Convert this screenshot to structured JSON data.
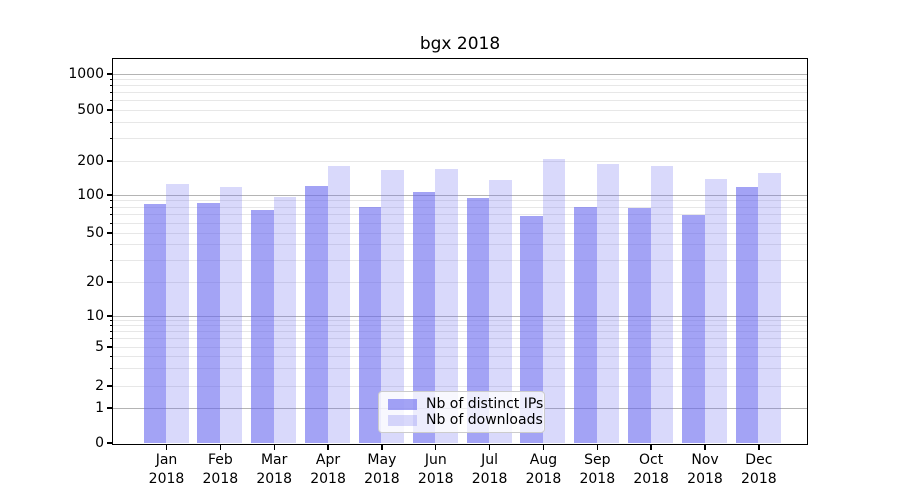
{
  "title": "bgx 2018",
  "chart_data": {
    "type": "bar",
    "title": "bgx 2018",
    "categories": [
      "Jan 2018",
      "Feb 2018",
      "Mar 2018",
      "Apr 2018",
      "May 2018",
      "Jun 2018",
      "Jul 2018",
      "Aug 2018",
      "Sep 2018",
      "Oct 2018",
      "Nov 2018",
      "Dec 2018"
    ],
    "series": [
      {
        "name": "Nb of distinct IPs",
        "color": "#6666ee",
        "opacity": 0.6,
        "values": [
          84,
          86,
          76,
          118,
          80,
          106,
          94,
          67,
          79,
          78,
          69,
          117
        ]
      },
      {
        "name": "Nb of downloads",
        "color": "#6666ee",
        "opacity": 0.25,
        "values": [
          123,
          116,
          95,
          179,
          166,
          168,
          135,
          205,
          187,
          178,
          137,
          156
        ]
      }
    ],
    "xlabel": "",
    "ylabel": "",
    "yscale": "symlog",
    "y_ticks": [
      0,
      1,
      2,
      5,
      10,
      20,
      50,
      100,
      200,
      500,
      1000
    ],
    "ylim": [
      0,
      1500
    ],
    "grid": "on",
    "grid_major_color": "#b4b4b4",
    "grid_minor_color": "#e7e7e7",
    "legend_position": "lower center",
    "legend_entries": [
      "Nb of distinct IPs",
      "Nb of downloads"
    ]
  }
}
